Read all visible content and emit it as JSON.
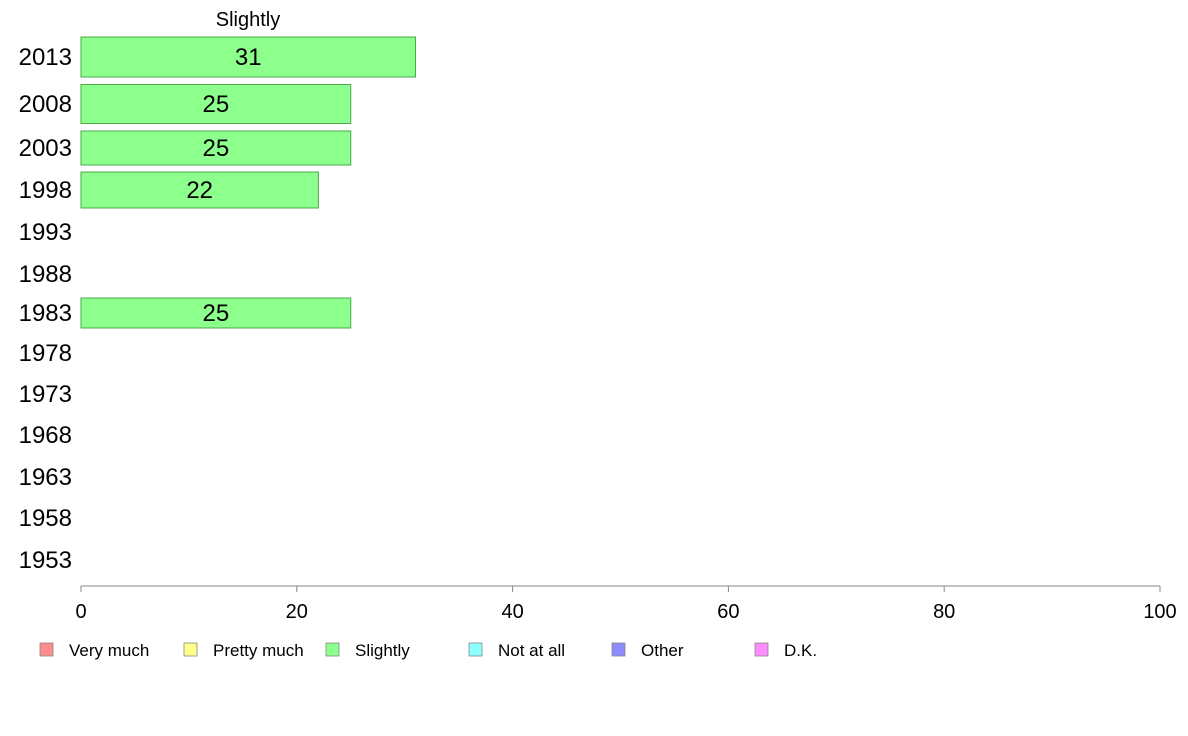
{
  "chart_data": {
    "type": "bar",
    "orientation": "horizontal",
    "panel_title": "Slightly",
    "categories": [
      "2013",
      "2008",
      "2003",
      "1998",
      "1993",
      "1988",
      "1983",
      "1978",
      "1973",
      "1968",
      "1963",
      "1958",
      "1953"
    ],
    "series": [
      {
        "name": "Slightly",
        "values": [
          31,
          25,
          25,
          22,
          null,
          null,
          25,
          null,
          null,
          null,
          null,
          null,
          null
        ]
      }
    ],
    "data_labels": [
      "31",
      "25",
      "25",
      "22",
      "",
      "",
      "25",
      "",
      "",
      "",
      "",
      "",
      ""
    ],
    "xlim": [
      0,
      100
    ],
    "x_ticks": [
      "0",
      "20",
      "40",
      "60",
      "80",
      "100"
    ],
    "grid": false,
    "legend_position": "bottom",
    "legend": [
      {
        "label": "Very much",
        "color": "#ff8c8c"
      },
      {
        "label": "Pretty much",
        "color": "#ffff8c"
      },
      {
        "label": "Slightly",
        "color": "#8cff8c"
      },
      {
        "label": "Not at all",
        "color": "#8cffff"
      },
      {
        "label": "Other",
        "color": "#8c8cff"
      },
      {
        "label": "D.K.",
        "color": "#ff8cff"
      }
    ],
    "bar_color": "#8cff8c",
    "bar_border_color": "#4ca64c"
  }
}
